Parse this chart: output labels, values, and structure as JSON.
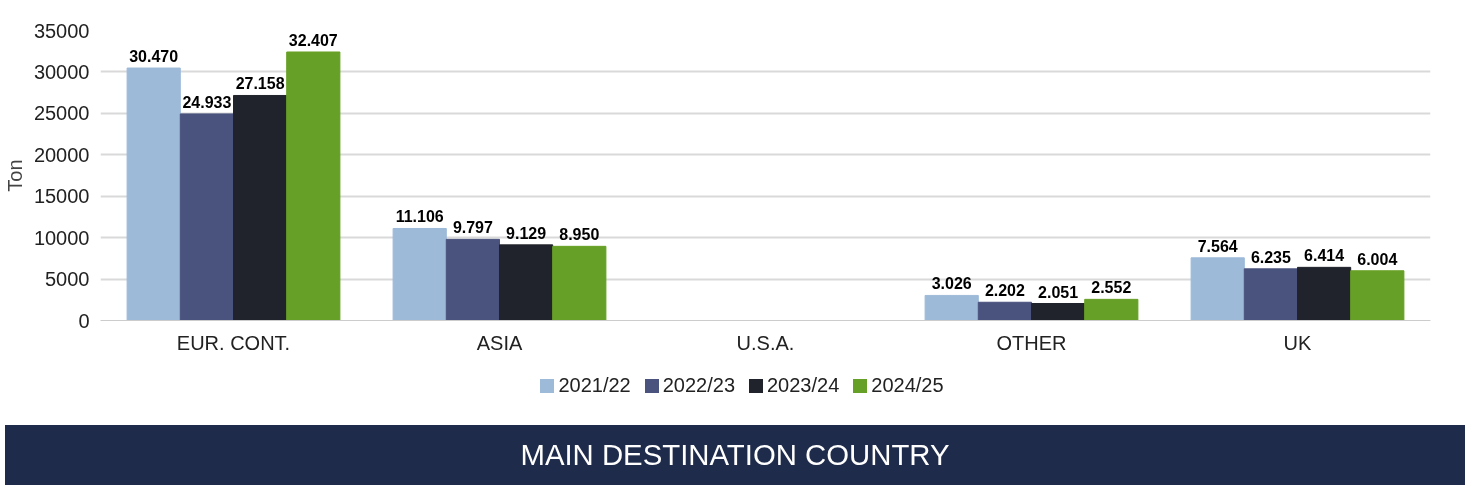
{
  "chart_data": {
    "type": "bar",
    "ylabel": "Ton",
    "categories": [
      "EUR. CONT.",
      "ASIA",
      "U.S.A.",
      "OTHER",
      "UK"
    ],
    "series": [
      {
        "name": "2021/22",
        "color": "#9dbad9",
        "values": [
          30470,
          11106,
          null,
          3026,
          7564
        ],
        "value_labels": [
          "30.470",
          "11.106",
          null,
          "3.026",
          "7.564"
        ]
      },
      {
        "name": "2022/23",
        "color": "#4a527e",
        "values": [
          24933,
          9797,
          null,
          2202,
          6235
        ],
        "value_labels": [
          "24.933",
          "9.797",
          null,
          "2.202",
          "6.235"
        ]
      },
      {
        "name": "2023/24",
        "color": "#20232b",
        "values": [
          27158,
          9129,
          null,
          2051,
          6414
        ],
        "value_labels": [
          "27.158",
          "9.129",
          null,
          "2.051",
          "6.414"
        ]
      },
      {
        "name": "2024/25",
        "color": "#67a026",
        "values": [
          32407,
          8950,
          null,
          2552,
          6004
        ],
        "value_labels": [
          "32.407",
          "8.950",
          null,
          "2.552",
          "6.004"
        ]
      }
    ],
    "ylim": [
      0,
      35000
    ],
    "yticks": [
      0,
      5000,
      10000,
      15000,
      20000,
      25000,
      30000,
      35000
    ],
    "grid": "y",
    "legend": "bottom",
    "annotations": [
      "MAIN DESTINATION COUNTRY"
    ]
  }
}
